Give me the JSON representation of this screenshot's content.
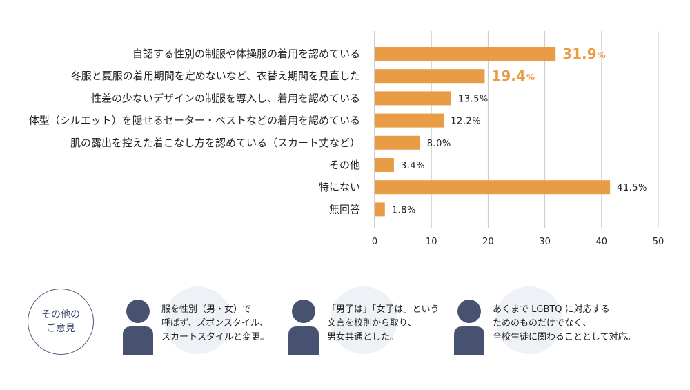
{
  "chart_data": {
    "type": "bar",
    "orientation": "horizontal",
    "categories": [
      "自認する性別の制服や体操服の着用を認めている",
      "冬服と夏服の着用期間を定めないなど、衣替え期間を見直した",
      "性差の少ないデザインの制服を導入し、着用を認めている",
      "体型（シルエット）を隠せるセーター・ベストなどの着用を認めている",
      "肌の露出を控えた着こなし方を認めている（スカート丈など）",
      "その他",
      "特にない",
      "無回答"
    ],
    "values": [
      31.9,
      19.4,
      13.5,
      12.2,
      8.0,
      3.4,
      41.5,
      1.8
    ],
    "value_labels": [
      "31.9",
      "19.4",
      "13.5%",
      "12.2%",
      "8.0%",
      "3.4%",
      "41.5%",
      "1.8%"
    ],
    "highlight_count": 2,
    "percent_sign": "%",
    "xlim": [
      0,
      50
    ],
    "xticks": [
      0,
      10,
      20,
      30,
      40,
      50
    ],
    "bar_color": "#e89c45",
    "grid_color": "#c9c9c9",
    "grid": true
  },
  "opinions": {
    "badge": [
      "その他の",
      "ご意見"
    ],
    "items": [
      {
        "lines": [
          "服を性別（男・女）で",
          "呼ばず、ズボンスタイル、",
          "スカートスタイルと変更。"
        ]
      },
      {
        "lines": [
          "「男子は」「女子は」という",
          "文言を校則から取り、",
          "男女共通とした。"
        ]
      },
      {
        "lines": [
          "あくまで LGBTQ に対応する",
          "ためのものだけでなく、",
          "全校生徒に関わることとして対応。"
        ]
      }
    ],
    "person_color": "#475271",
    "circle_color": "#eef1f6"
  }
}
